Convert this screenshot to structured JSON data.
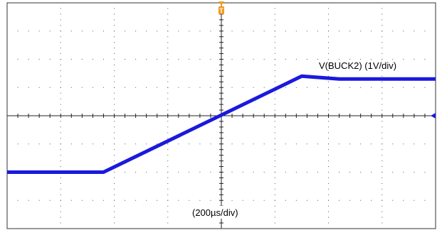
{
  "chart_data": {
    "type": "line",
    "series": [
      {
        "name": "V(BUCK2) (1V/div)",
        "x": [
          -4.0,
          -2.2,
          1.5,
          2.2,
          4.0
        ],
        "values": [
          -1.0,
          -1.0,
          0.7,
          0.65,
          0.65
        ]
      }
    ],
    "xlim": [
      -4,
      4
    ],
    "ylim": [
      -2,
      2
    ],
    "x_div": 8,
    "y_div": 4,
    "grid": true,
    "colors": {
      "trace": "#1a1adc",
      "trigger": "#f59a1e",
      "grid": "#555555",
      "frame": "#333333"
    }
  },
  "labels": {
    "channel": "V(BUCK2) (1V/div)",
    "timebase": "(200µs/div)",
    "trigger_letter": "T"
  }
}
